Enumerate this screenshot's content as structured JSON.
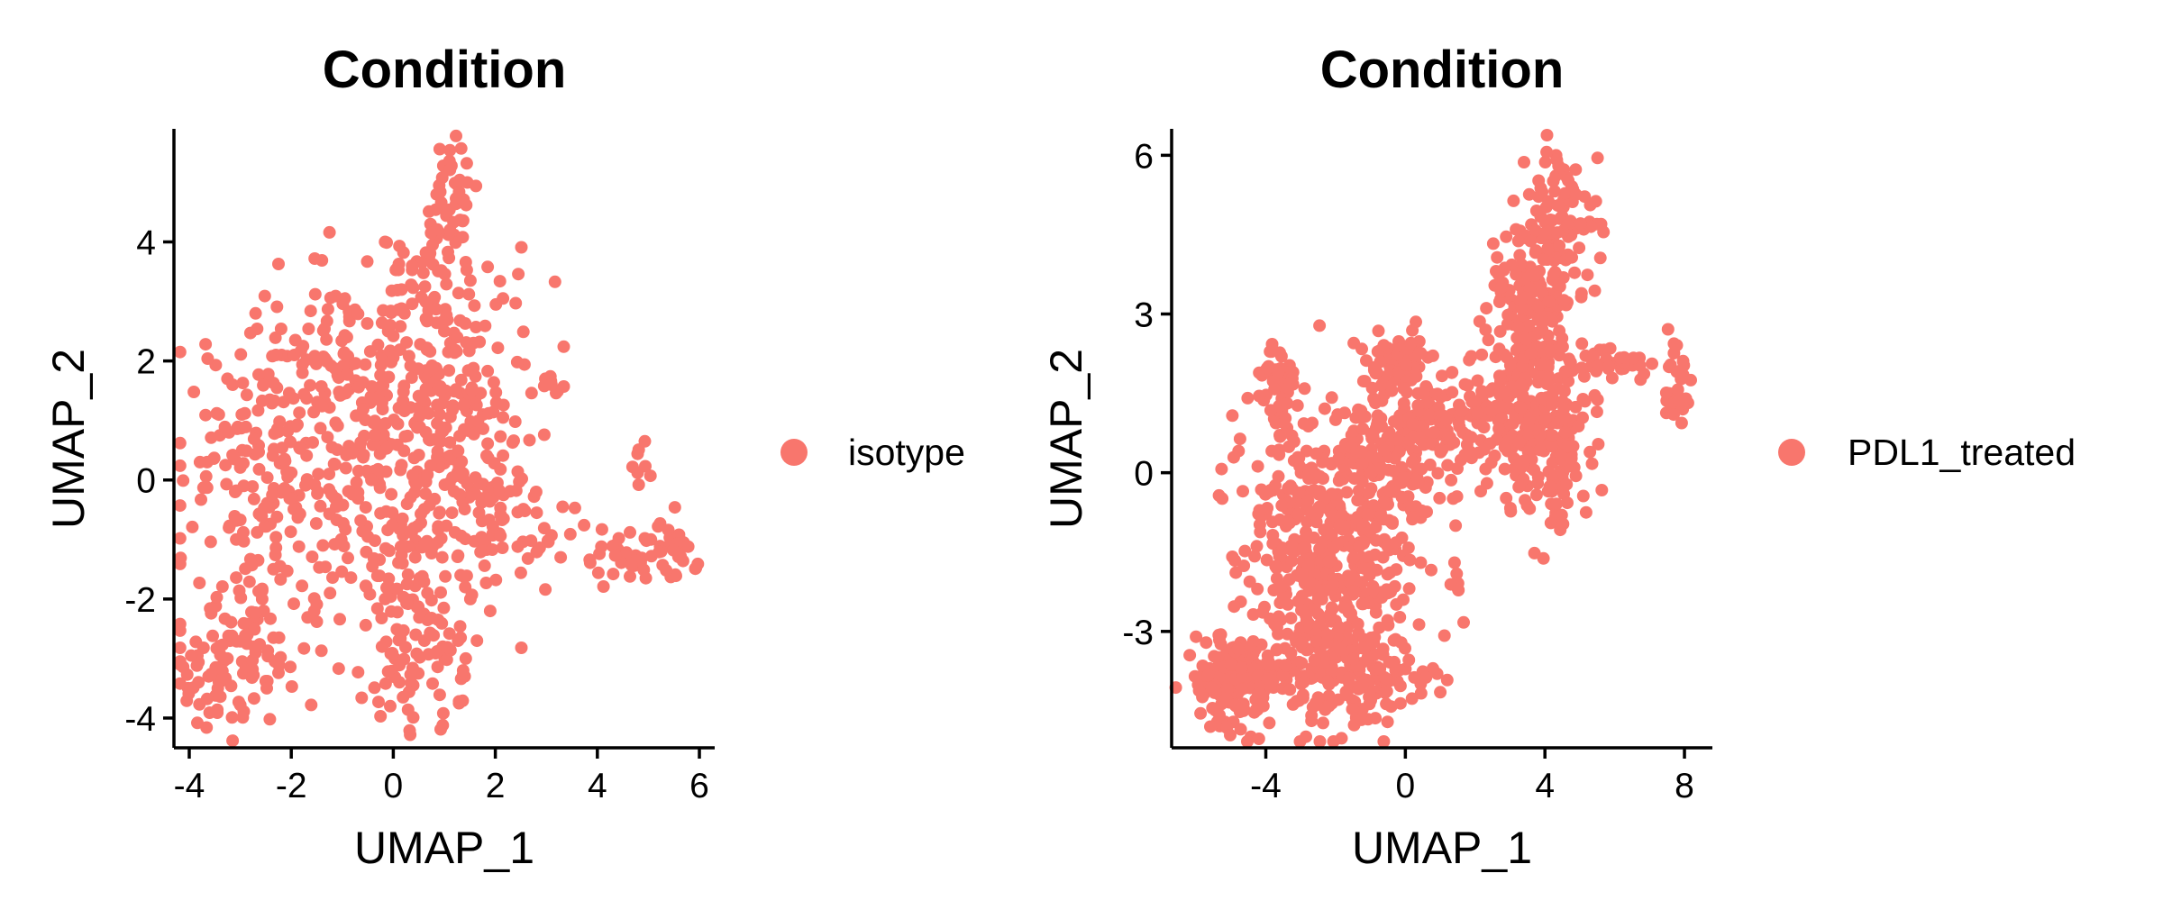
{
  "chart_data": [
    {
      "type": "scatter",
      "title": "Condition",
      "xlabel": "UMAP_1",
      "ylabel": "UMAP_2",
      "xlim": [
        -4.3,
        6.3
      ],
      "ylim": [
        -4.5,
        5.9
      ],
      "xticks": [
        -4,
        -2,
        0,
        2,
        4,
        6
      ],
      "yticks": [
        -4,
        -2,
        0,
        2,
        4
      ],
      "xtick_labels": [
        "-4",
        "-2",
        "0",
        "2",
        "4",
        "6"
      ],
      "ytick_labels": [
        "-4",
        "-2",
        "0",
        "2",
        "4"
      ],
      "grid": false,
      "legend_position": "right",
      "series": [
        {
          "name": "isotype",
          "color": "#F8766D",
          "point_count": 1000,
          "x": [],
          "y": []
        }
      ]
    },
    {
      "type": "scatter",
      "title": "Condition",
      "xlabel": "UMAP_1",
      "ylabel": "UMAP_2",
      "xlim": [
        -6.7,
        8.8
      ],
      "ylim": [
        -5.2,
        6.5
      ],
      "xticks": [
        -4,
        0,
        4,
        8
      ],
      "yticks": [
        -3,
        0,
        3,
        6
      ],
      "xtick_labels": [
        "-4",
        "0",
        "4",
        "8"
      ],
      "ytick_labels": [
        "-3",
        "0",
        "3",
        "6"
      ],
      "grid": false,
      "legend_position": "right",
      "series": [
        {
          "name": "PDL1_treated",
          "color": "#F8766D",
          "point_count": 1900,
          "x": [],
          "y": []
        }
      ]
    }
  ]
}
